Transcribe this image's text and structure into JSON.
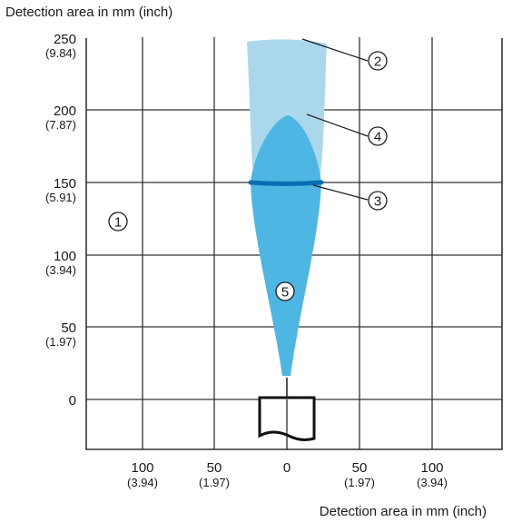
{
  "axis_titles": {
    "y": "Detection area in mm (inch)",
    "x": "Detection area in mm (inch)"
  },
  "y_ticks": [
    {
      "value": 250,
      "main": "250",
      "sub": "(9.84)"
    },
    {
      "value": 200,
      "main": "200",
      "sub": "(7.87)"
    },
    {
      "value": 150,
      "main": "150",
      "sub": "(5.91)"
    },
    {
      "value": 100,
      "main": "100",
      "sub": "(3.94)"
    },
    {
      "value": 50,
      "main": "50",
      "sub": "(1.97)"
    },
    {
      "value": 0,
      "main": "0",
      "sub": ""
    }
  ],
  "x_ticks": [
    {
      "value": -100,
      "main": "100",
      "sub": "(3.94)"
    },
    {
      "value": -50,
      "main": "50",
      "sub": "(1.97)"
    },
    {
      "value": 0,
      "main": "0",
      "sub": ""
    },
    {
      "value": 50,
      "main": "50",
      "sub": "(1.97)"
    },
    {
      "value": 100,
      "main": "100",
      "sub": "(3.94)"
    }
  ],
  "callouts": {
    "c1": "1",
    "c2": "2",
    "c3": "3",
    "c4": "4",
    "c5": "5"
  },
  "colors": {
    "beam_outer": "#aad7ec",
    "beam_inner": "#4eb6e2",
    "focus_line": "#0a6db4"
  }
}
